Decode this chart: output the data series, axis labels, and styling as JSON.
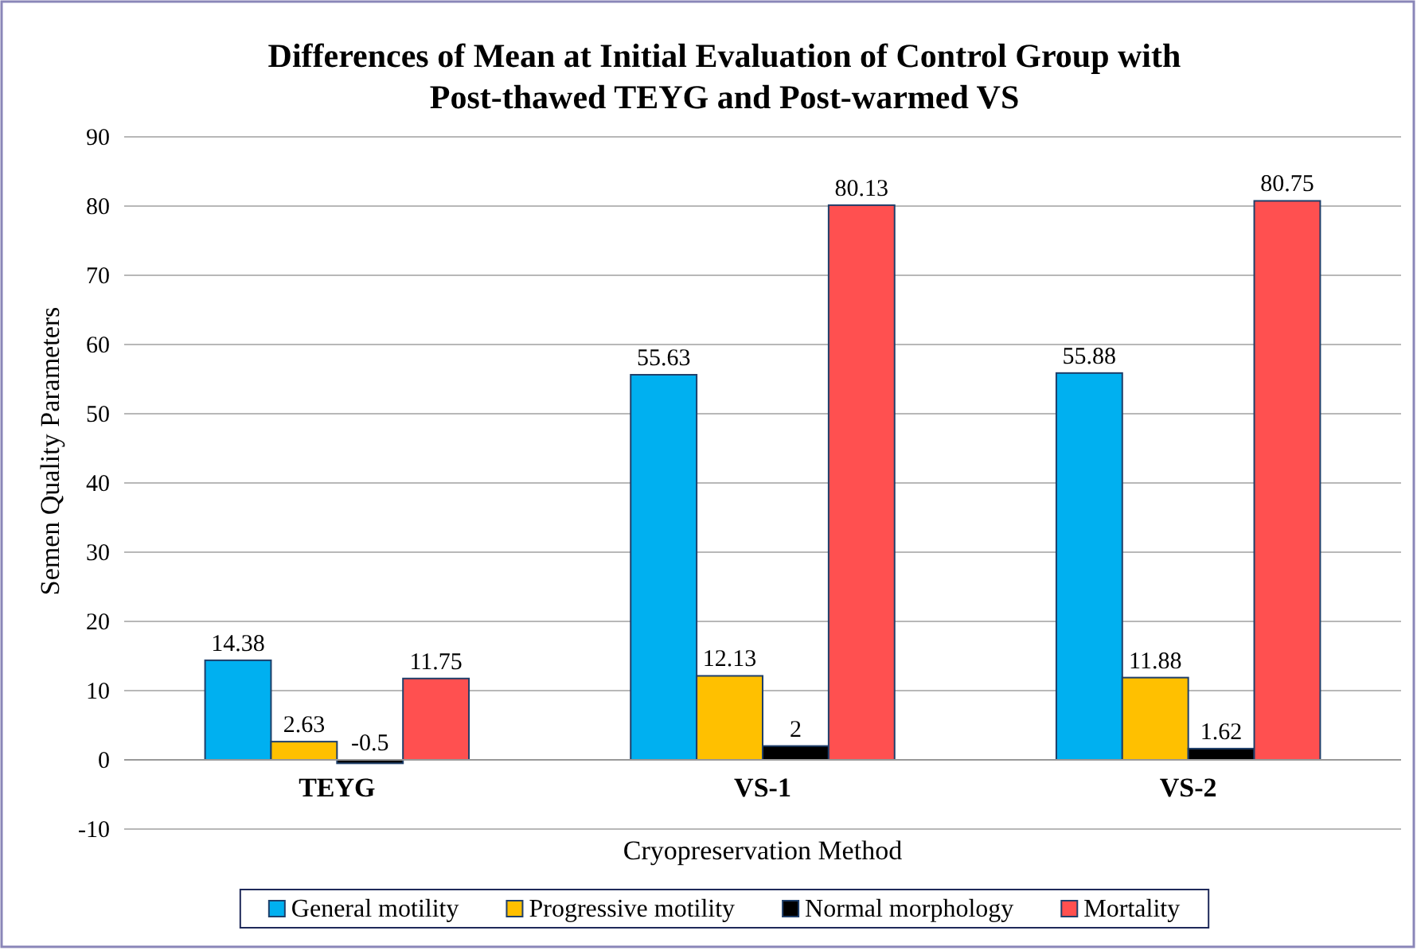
{
  "chart_data": {
    "type": "bar",
    "title": "Differences of Mean at Initial Evaluation of Control Group with Post-thawed TEYG and Post-warmed VS",
    "xlabel": "Cryopreservation Method",
    "ylabel": "Semen Quality Parameters",
    "categories": [
      "TEYG",
      "VS-1",
      "VS-2"
    ],
    "series": [
      {
        "name": "General motility",
        "color": "#00b0f0",
        "values": [
          14.38,
          55.63,
          55.88
        ]
      },
      {
        "name": "Progressive motility",
        "color": "#ffc000",
        "values": [
          2.63,
          12.13,
          11.88
        ]
      },
      {
        "name": "Normal morphology",
        "color": "#000000",
        "values": [
          -0.5,
          2,
          1.62
        ]
      },
      {
        "name": "Mortality",
        "color": "#ff5050",
        "values": [
          11.75,
          80.13,
          80.75
        ]
      }
    ],
    "ylim": [
      -10,
      90
    ],
    "yticks": [
      -10,
      0,
      10,
      20,
      30,
      40,
      50,
      60,
      70,
      80,
      90
    ],
    "grid": "y",
    "legend": "bottom",
    "data_labels": true
  }
}
